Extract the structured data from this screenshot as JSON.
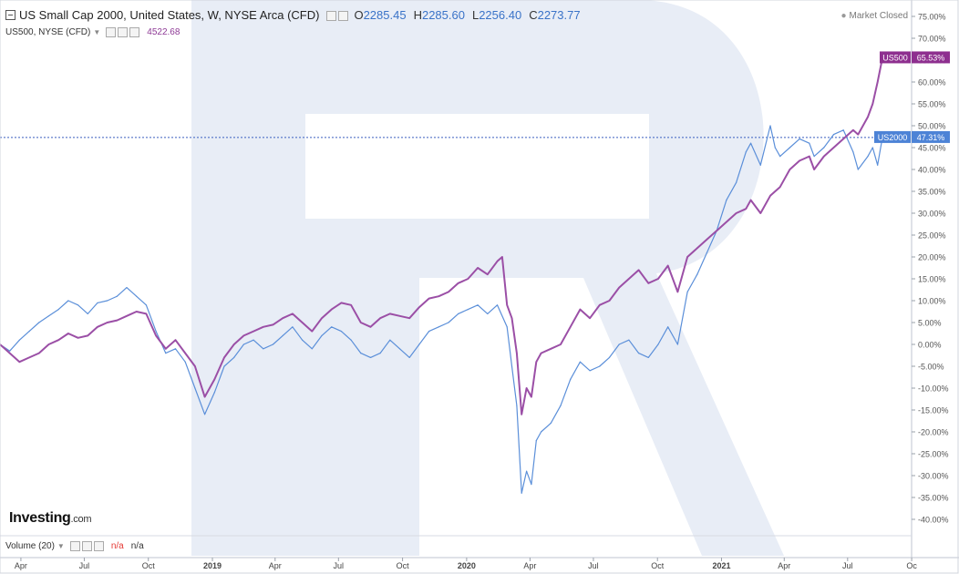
{
  "header": {
    "title": "US Small Cap 2000, United States, W, NYSE Arca (CFD)",
    "ohlc": [
      {
        "key": "O",
        "value": "2285.45"
      },
      {
        "key": "H",
        "value": "2285.60"
      },
      {
        "key": "L",
        "value": "2256.40"
      },
      {
        "key": "C",
        "value": "2273.77"
      }
    ],
    "market_status": "Market Closed"
  },
  "overlay": {
    "label": "US500, NYSE (CFD)",
    "value": "4522.68",
    "color": "#8e3a96"
  },
  "volume": {
    "label": "Volume (20)",
    "value1": "n/a",
    "value2": "n/a"
  },
  "logo": {
    "main": "Investing",
    "suffix": ".com"
  },
  "colors": {
    "us2000": "#5b8fd9",
    "us500": "#9b4fa6",
    "crosshair": "#3a5fbf",
    "watermark": "#e6ebf5"
  },
  "chart_data": {
    "type": "line",
    "x_unit": "week",
    "x_range": [
      "2018-03-02",
      "2021-08-20"
    ],
    "x_tick_labels": [
      {
        "label": "Apr",
        "date": "2018-04-01",
        "bold": false
      },
      {
        "label": "Jul",
        "date": "2018-07-01",
        "bold": false
      },
      {
        "label": "Oct",
        "date": "2018-10-01",
        "bold": false
      },
      {
        "label": "2019",
        "date": "2019-01-01",
        "bold": true
      },
      {
        "label": "Apr",
        "date": "2019-04-01",
        "bold": false
      },
      {
        "label": "Jul",
        "date": "2019-07-01",
        "bold": false
      },
      {
        "label": "Oct",
        "date": "2019-10-01",
        "bold": false
      },
      {
        "label": "2020",
        "date": "2020-01-01",
        "bold": true
      },
      {
        "label": "Apr",
        "date": "2020-04-01",
        "bold": false
      },
      {
        "label": "Jul",
        "date": "2020-07-01",
        "bold": false
      },
      {
        "label": "Oct",
        "date": "2020-10-01",
        "bold": false
      },
      {
        "label": "2021",
        "date": "2021-01-01",
        "bold": true
      },
      {
        "label": "Apr",
        "date": "2021-04-01",
        "bold": false
      },
      {
        "label": "Jul",
        "date": "2021-07-01",
        "bold": false
      },
      {
        "label": "Oc",
        "date": "2021-10-01",
        "bold": false
      }
    ],
    "y_ticks": [
      "75.00%",
      "70.00%",
      "65.00%",
      "60.00%",
      "55.00%",
      "50.00%",
      "45.00%",
      "40.00%",
      "35.00%",
      "30.00%",
      "25.00%",
      "20.00%",
      "15.00%",
      "10.00%",
      "5.00%",
      "0.00%",
      "-5.00%",
      "-10.00%",
      "-15.00%",
      "-20.00%",
      "-25.00%",
      "-30.00%",
      "-35.00%",
      "-40.00%"
    ],
    "ylim": [
      -42,
      76
    ],
    "series": [
      {
        "name": "US2000",
        "color": "#5b8fd9",
        "last_label": "47.31%",
        "last_value": 47.31,
        "points": [
          [
            "2018-03-02",
            0
          ],
          [
            "2018-03-16",
            -1.5
          ],
          [
            "2018-03-30",
            1
          ],
          [
            "2018-04-13",
            3
          ],
          [
            "2018-04-27",
            5
          ],
          [
            "2018-05-11",
            6.5
          ],
          [
            "2018-05-25",
            8
          ],
          [
            "2018-06-08",
            10
          ],
          [
            "2018-06-22",
            9
          ],
          [
            "2018-07-06",
            7
          ],
          [
            "2018-07-20",
            9.5
          ],
          [
            "2018-08-03",
            10
          ],
          [
            "2018-08-17",
            11
          ],
          [
            "2018-08-31",
            13
          ],
          [
            "2018-09-14",
            11
          ],
          [
            "2018-09-28",
            9
          ],
          [
            "2018-10-12",
            3
          ],
          [
            "2018-10-26",
            -2
          ],
          [
            "2018-11-09",
            -1
          ],
          [
            "2018-11-23",
            -4
          ],
          [
            "2018-12-07",
            -10
          ],
          [
            "2018-12-21",
            -16
          ],
          [
            "2019-01-04",
            -11
          ],
          [
            "2019-01-18",
            -5
          ],
          [
            "2019-02-01",
            -3
          ],
          [
            "2019-02-15",
            0
          ],
          [
            "2019-03-01",
            1
          ],
          [
            "2019-03-15",
            -1
          ],
          [
            "2019-03-29",
            0
          ],
          [
            "2019-04-12",
            2
          ],
          [
            "2019-04-26",
            4
          ],
          [
            "2019-05-10",
            1
          ],
          [
            "2019-05-24",
            -1
          ],
          [
            "2019-06-07",
            2
          ],
          [
            "2019-06-21",
            4
          ],
          [
            "2019-07-05",
            3
          ],
          [
            "2019-07-19",
            1
          ],
          [
            "2019-08-02",
            -2
          ],
          [
            "2019-08-16",
            -3
          ],
          [
            "2019-08-30",
            -2
          ],
          [
            "2019-09-13",
            1
          ],
          [
            "2019-09-27",
            -1
          ],
          [
            "2019-10-11",
            -3
          ],
          [
            "2019-10-25",
            0
          ],
          [
            "2019-11-08",
            3
          ],
          [
            "2019-11-22",
            4
          ],
          [
            "2019-12-06",
            5
          ],
          [
            "2019-12-20",
            7
          ],
          [
            "2020-01-03",
            8
          ],
          [
            "2020-01-17",
            9
          ],
          [
            "2020-01-31",
            7
          ],
          [
            "2020-02-14",
            9
          ],
          [
            "2020-02-28",
            4
          ],
          [
            "2020-03-06",
            -5
          ],
          [
            "2020-03-13",
            -14
          ],
          [
            "2020-03-20",
            -34
          ],
          [
            "2020-03-27",
            -29
          ],
          [
            "2020-04-03",
            -32
          ],
          [
            "2020-04-10",
            -22
          ],
          [
            "2020-04-17",
            -20
          ],
          [
            "2020-05-01",
            -18
          ],
          [
            "2020-05-15",
            -14
          ],
          [
            "2020-05-29",
            -8
          ],
          [
            "2020-06-12",
            -4
          ],
          [
            "2020-06-26",
            -6
          ],
          [
            "2020-07-10",
            -5
          ],
          [
            "2020-07-24",
            -3
          ],
          [
            "2020-08-07",
            0
          ],
          [
            "2020-08-21",
            1
          ],
          [
            "2020-09-04",
            -2
          ],
          [
            "2020-09-18",
            -3
          ],
          [
            "2020-10-02",
            0
          ],
          [
            "2020-10-16",
            4
          ],
          [
            "2020-10-30",
            0
          ],
          [
            "2020-11-13",
            12
          ],
          [
            "2020-11-27",
            16
          ],
          [
            "2020-12-11",
            21
          ],
          [
            "2020-12-25",
            26
          ],
          [
            "2021-01-08",
            33
          ],
          [
            "2021-01-22",
            37
          ],
          [
            "2021-02-05",
            44
          ],
          [
            "2021-02-12",
            46
          ],
          [
            "2021-02-26",
            41
          ],
          [
            "2021-03-12",
            50
          ],
          [
            "2021-03-19",
            45
          ],
          [
            "2021-03-26",
            43
          ],
          [
            "2021-04-09",
            45
          ],
          [
            "2021-04-23",
            47
          ],
          [
            "2021-05-07",
            46
          ],
          [
            "2021-05-14",
            43
          ],
          [
            "2021-05-28",
            45
          ],
          [
            "2021-06-11",
            48
          ],
          [
            "2021-06-25",
            49
          ],
          [
            "2021-07-09",
            44
          ],
          [
            "2021-07-16",
            40
          ],
          [
            "2021-07-30",
            43
          ],
          [
            "2021-08-06",
            45
          ],
          [
            "2021-08-13",
            41
          ],
          [
            "2021-08-20",
            47.31
          ]
        ]
      },
      {
        "name": "US500",
        "color": "#9b4fa6",
        "last_label": "65.53%",
        "last_value": 65.53,
        "points": [
          [
            "2018-03-02",
            0
          ],
          [
            "2018-03-16",
            -2
          ],
          [
            "2018-03-30",
            -4
          ],
          [
            "2018-04-13",
            -3
          ],
          [
            "2018-04-27",
            -2
          ],
          [
            "2018-05-11",
            0
          ],
          [
            "2018-05-25",
            1
          ],
          [
            "2018-06-08",
            2.5
          ],
          [
            "2018-06-22",
            1.5
          ],
          [
            "2018-07-06",
            2
          ],
          [
            "2018-07-20",
            4
          ],
          [
            "2018-08-03",
            5
          ],
          [
            "2018-08-17",
            5.5
          ],
          [
            "2018-08-31",
            6.5
          ],
          [
            "2018-09-14",
            7.5
          ],
          [
            "2018-09-28",
            7
          ],
          [
            "2018-10-12",
            2
          ],
          [
            "2018-10-26",
            -1
          ],
          [
            "2018-11-09",
            1
          ],
          [
            "2018-11-23",
            -2
          ],
          [
            "2018-12-07",
            -5
          ],
          [
            "2018-12-21",
            -12
          ],
          [
            "2019-01-04",
            -8
          ],
          [
            "2019-01-18",
            -3
          ],
          [
            "2019-02-01",
            0
          ],
          [
            "2019-02-15",
            2
          ],
          [
            "2019-03-01",
            3
          ],
          [
            "2019-03-15",
            4
          ],
          [
            "2019-03-29",
            4.5
          ],
          [
            "2019-04-12",
            6
          ],
          [
            "2019-04-26",
            7
          ],
          [
            "2019-05-10",
            5
          ],
          [
            "2019-05-24",
            3
          ],
          [
            "2019-06-07",
            6
          ],
          [
            "2019-06-21",
            8
          ],
          [
            "2019-07-05",
            9.5
          ],
          [
            "2019-07-19",
            9
          ],
          [
            "2019-08-02",
            5
          ],
          [
            "2019-08-16",
            4
          ],
          [
            "2019-08-30",
            6
          ],
          [
            "2019-09-13",
            7
          ],
          [
            "2019-09-27",
            6.5
          ],
          [
            "2019-10-11",
            6
          ],
          [
            "2019-10-25",
            8.5
          ],
          [
            "2019-11-08",
            10.5
          ],
          [
            "2019-11-22",
            11
          ],
          [
            "2019-12-06",
            12
          ],
          [
            "2019-12-20",
            14
          ],
          [
            "2020-01-03",
            15
          ],
          [
            "2020-01-17",
            17.5
          ],
          [
            "2020-01-31",
            16
          ],
          [
            "2020-02-14",
            19
          ],
          [
            "2020-02-21",
            20
          ],
          [
            "2020-02-28",
            9
          ],
          [
            "2020-03-06",
            6
          ],
          [
            "2020-03-13",
            -2
          ],
          [
            "2020-03-20",
            -16
          ],
          [
            "2020-03-27",
            -10
          ],
          [
            "2020-04-03",
            -12
          ],
          [
            "2020-04-10",
            -4
          ],
          [
            "2020-04-17",
            -2
          ],
          [
            "2020-05-01",
            -1
          ],
          [
            "2020-05-15",
            0
          ],
          [
            "2020-05-29",
            4
          ],
          [
            "2020-06-12",
            8
          ],
          [
            "2020-06-26",
            6
          ],
          [
            "2020-07-10",
            9
          ],
          [
            "2020-07-24",
            10
          ],
          [
            "2020-08-07",
            13
          ],
          [
            "2020-08-21",
            15
          ],
          [
            "2020-09-04",
            17
          ],
          [
            "2020-09-18",
            14
          ],
          [
            "2020-10-02",
            15
          ],
          [
            "2020-10-16",
            18
          ],
          [
            "2020-10-30",
            12
          ],
          [
            "2020-11-13",
            20
          ],
          [
            "2020-11-27",
            22
          ],
          [
            "2020-12-11",
            24
          ],
          [
            "2020-12-25",
            26
          ],
          [
            "2021-01-08",
            28
          ],
          [
            "2021-01-22",
            30
          ],
          [
            "2021-02-05",
            31
          ],
          [
            "2021-02-12",
            33
          ],
          [
            "2021-02-26",
            30
          ],
          [
            "2021-03-12",
            34
          ],
          [
            "2021-03-26",
            36
          ],
          [
            "2021-04-09",
            40
          ],
          [
            "2021-04-23",
            42
          ],
          [
            "2021-05-07",
            43
          ],
          [
            "2021-05-14",
            40
          ],
          [
            "2021-05-28",
            43
          ],
          [
            "2021-06-11",
            45
          ],
          [
            "2021-06-25",
            47
          ],
          [
            "2021-07-09",
            49
          ],
          [
            "2021-07-16",
            48
          ],
          [
            "2021-07-30",
            52
          ],
          [
            "2021-08-06",
            55
          ],
          [
            "2021-08-13",
            60
          ],
          [
            "2021-08-20",
            65.53
          ]
        ]
      }
    ],
    "crosshair_value": 47.31,
    "legend": "top-left"
  }
}
